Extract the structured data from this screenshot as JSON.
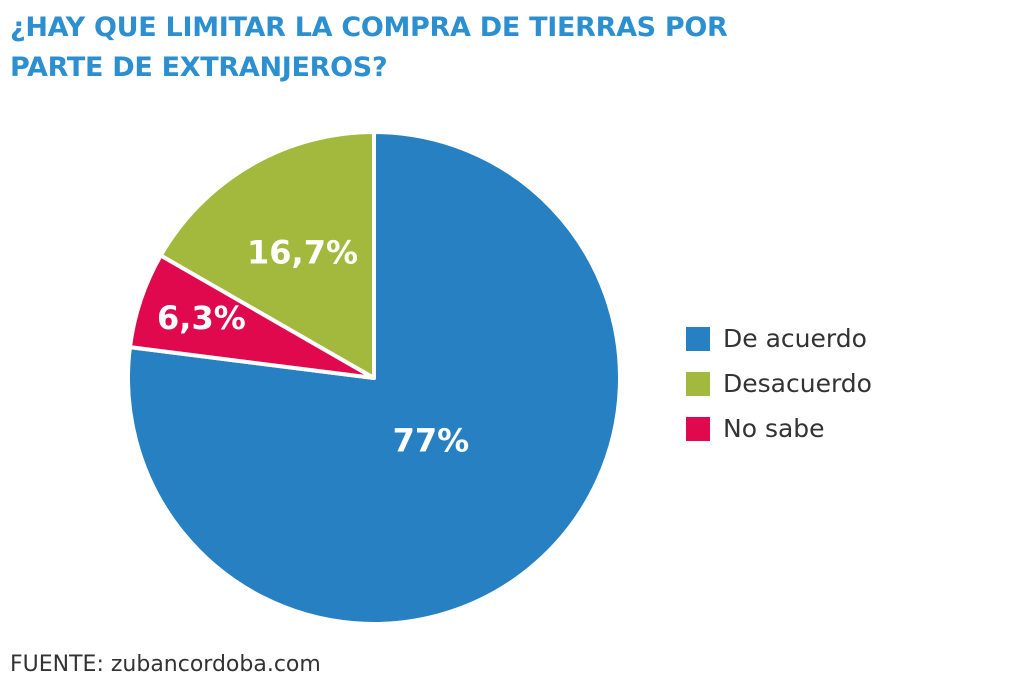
{
  "title": "¿HAY QUE LIMITAR LA COMPRA DE TIERRAS POR PARTE DE EXTRANJEROS?",
  "source": "FUENTE: zubancordoba.com",
  "chart_data": {
    "type": "pie",
    "title": "¿HAY QUE LIMITAR LA COMPRA DE TIERRAS POR PARTE DE EXTRANJEROS?",
    "legend_position": "right",
    "slices": [
      {
        "label": "De acuerdo",
        "value": 77,
        "display": "77%",
        "color": "#2680c2"
      },
      {
        "label": "No sabe",
        "value": 6.3,
        "display": "6,3%",
        "color": "#e0094e"
      },
      {
        "label": "Desacuerdo",
        "value": 16.7,
        "display": "16,7%",
        "color": "#a2b93e"
      }
    ],
    "legend": [
      {
        "label": "De acuerdo",
        "color": "#2680c2"
      },
      {
        "label": "Desacuerdo",
        "color": "#a2b93e"
      },
      {
        "label": "No sabe",
        "color": "#e0094e"
      }
    ]
  }
}
